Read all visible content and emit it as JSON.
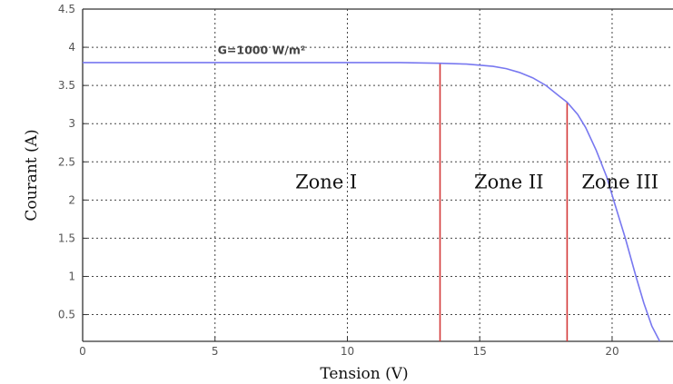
{
  "chart_data": {
    "type": "line",
    "title": "",
    "xlabel": "Tension (V)",
    "ylabel": "Courant (A)",
    "xlim": [
      0,
      22.3
    ],
    "ylim": [
      0.15,
      4.5
    ],
    "xticks": [
      "0",
      "5",
      "10",
      "15",
      "20"
    ],
    "yticks": [
      "0.5",
      "1",
      "1.5",
      "2",
      "2.5",
      "3",
      "3.5",
      "4",
      "4.5"
    ],
    "grid": true,
    "series": [
      {
        "name": "",
        "color": "#7878f0",
        "x": [
          0,
          5,
          10,
          12,
          13.5,
          14.5,
          15.5,
          16,
          16.5,
          17,
          17.5,
          18,
          18.3,
          18.7,
          19,
          19.4,
          19.8,
          20.1,
          20.5,
          20.9,
          21.2,
          21.5,
          21.8
        ],
        "y": [
          3.8,
          3.8,
          3.8,
          3.8,
          3.79,
          3.78,
          3.75,
          3.72,
          3.67,
          3.6,
          3.5,
          3.36,
          3.28,
          3.12,
          2.95,
          2.65,
          2.3,
          1.95,
          1.5,
          1.0,
          0.65,
          0.35,
          0.15
        ]
      }
    ],
    "boundaries": [
      {
        "x": 13.5,
        "y_top": 3.79,
        "color": "#d43a3a"
      },
      {
        "x": 18.3,
        "y_top": 3.28,
        "color": "#d43a3a"
      }
    ],
    "zones": [
      {
        "label": "Zone I",
        "x": 9.2,
        "y": 2.15
      },
      {
        "label": "Zone II",
        "x": 16.1,
        "y": 2.15
      },
      {
        "label": "Zone III",
        "x": 20.3,
        "y": 2.15
      }
    ],
    "annotation": {
      "text": "G=1000 W/m²",
      "x": 5.1,
      "y": 3.91
    }
  }
}
